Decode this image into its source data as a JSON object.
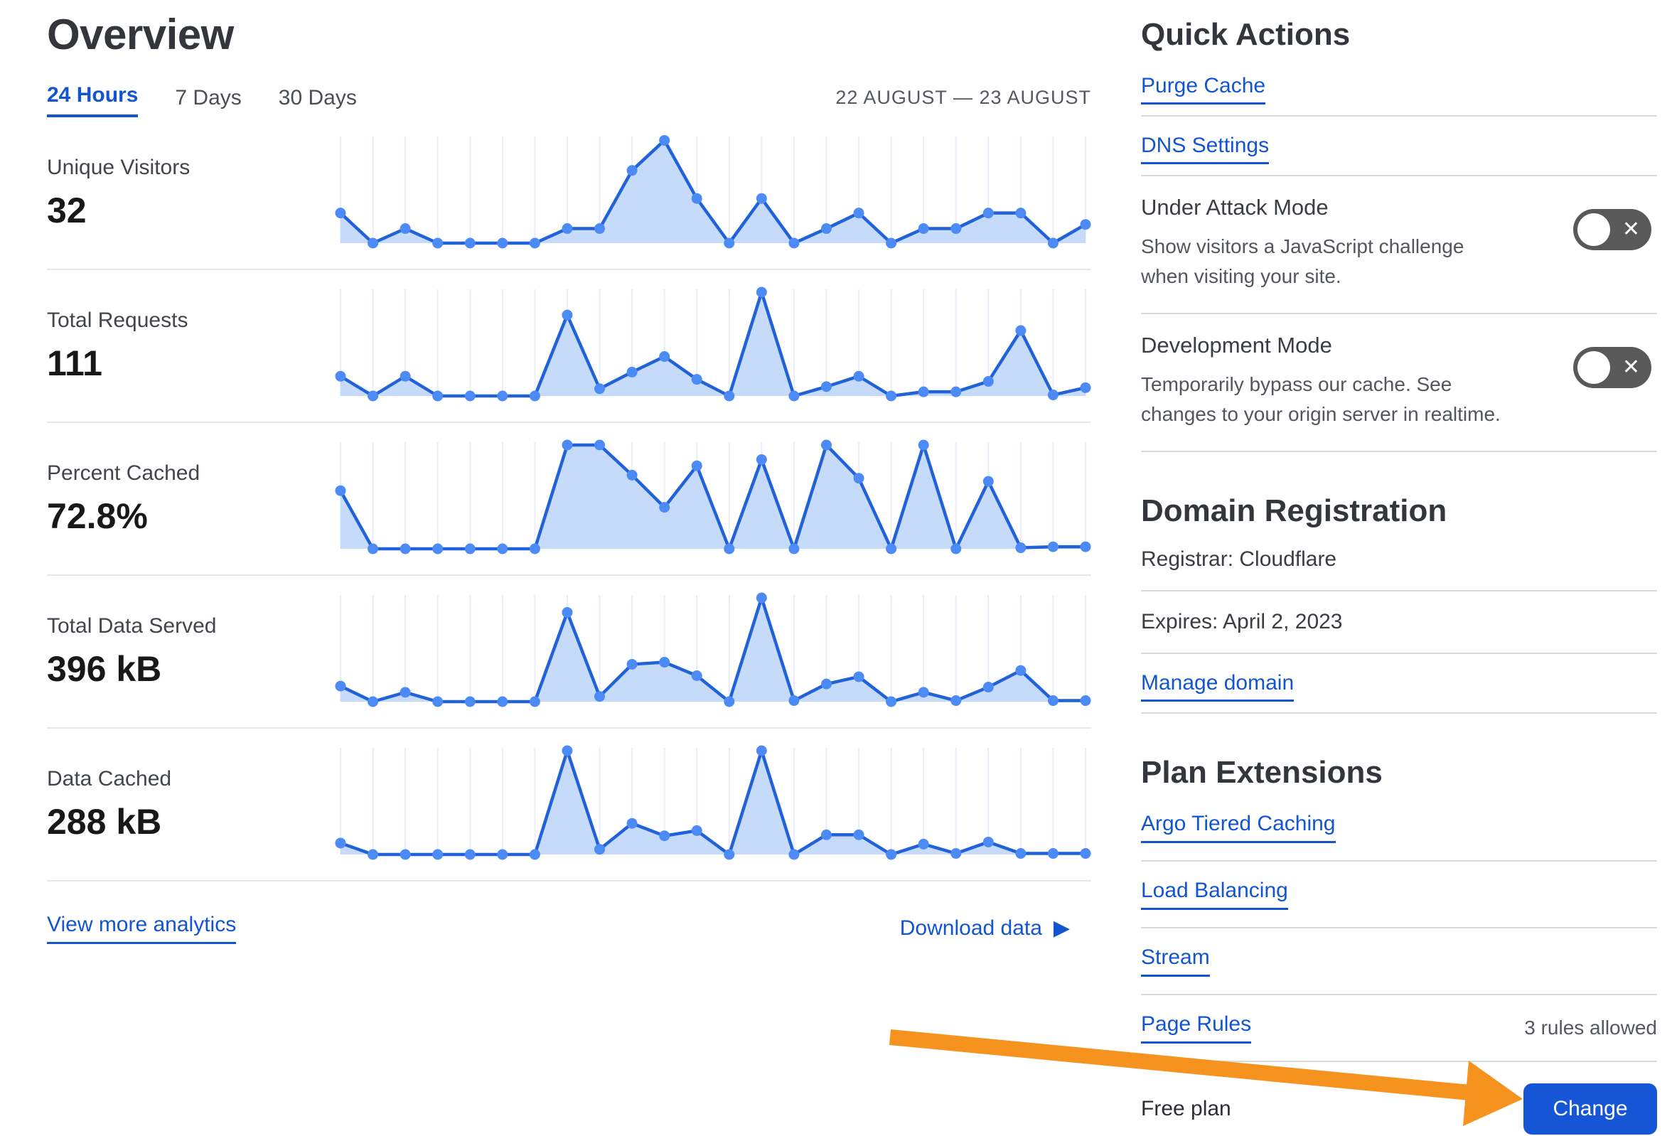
{
  "page": {
    "title": "Overview"
  },
  "tabs": [
    {
      "label": "24 Hours",
      "active": true
    },
    {
      "label": "7 Days",
      "active": false
    },
    {
      "label": "30 Days",
      "active": false
    }
  ],
  "date_range": "22 AUGUST — 23 AUGUST",
  "chart_data": [
    {
      "type": "area",
      "name": "Unique Visitors",
      "total": "32",
      "x_unit": "hour",
      "x_range": "22 AUGUST — 23 AUGUST",
      "ylim": [
        0,
        100
      ],
      "grid": "vertical-only",
      "legend": false,
      "values_relative_pct": [
        29,
        0,
        14,
        0,
        0,
        0,
        0,
        14,
        14,
        70,
        99,
        43,
        0,
        43,
        0,
        14,
        29,
        0,
        14,
        14,
        29,
        29,
        0,
        18
      ]
    },
    {
      "type": "area",
      "name": "Total Requests",
      "total": "111",
      "x_unit": "hour",
      "x_range": "22 AUGUST — 23 AUGUST",
      "ylim": [
        0,
        100
      ],
      "grid": "vertical-only",
      "legend": false,
      "values_relative_pct": [
        19,
        0,
        19,
        0,
        0,
        0,
        0,
        78,
        7,
        23,
        38,
        16,
        0,
        100,
        0,
        9,
        19,
        0,
        4,
        4,
        14,
        63,
        1,
        8
      ]
    },
    {
      "type": "area",
      "name": "Percent Cached",
      "total": "72.8%",
      "x_unit": "hour",
      "x_range": "22 AUGUST — 23 AUGUST",
      "ylim": [
        0,
        100
      ],
      "grid": "vertical-only",
      "legend": false,
      "values_relative_pct": [
        56,
        0,
        0,
        0,
        0,
        0,
        0,
        100,
        100,
        71,
        40,
        80,
        0,
        86,
        0,
        100,
        68,
        0,
        100,
        0,
        65,
        1,
        2,
        2
      ]
    },
    {
      "type": "area",
      "name": "Total Data Served",
      "total": "396 kB",
      "x_unit": "hour",
      "x_range": "22 AUGUST — 23 AUGUST",
      "ylim": [
        0,
        100
      ],
      "grid": "vertical-only",
      "legend": false,
      "values_relative_pct": [
        15,
        0,
        9,
        0,
        0,
        0,
        0,
        86,
        5,
        36,
        38,
        25,
        0,
        100,
        1,
        17,
        24,
        0,
        9,
        1,
        14,
        30,
        1,
        1
      ]
    },
    {
      "type": "area",
      "name": "Data Cached",
      "total": "288 kB",
      "x_unit": "hour",
      "x_range": "22 AUGUST — 23 AUGUST",
      "ylim": [
        0,
        100
      ],
      "grid": "vertical-only",
      "legend": false,
      "values_relative_pct": [
        11,
        0,
        0,
        0,
        0,
        0,
        0,
        100,
        5,
        30,
        18,
        23,
        0,
        100,
        0,
        19,
        19,
        0,
        10,
        1,
        12,
        1,
        1,
        1
      ]
    }
  ],
  "footer_links": {
    "view_more": "View more analytics",
    "download": "Download data",
    "download_icon": "play-right-triangle"
  },
  "quick_actions": {
    "title": "Quick Actions",
    "links": [
      {
        "label": "Purge Cache"
      },
      {
        "label": "DNS Settings"
      }
    ],
    "toggles": [
      {
        "label": "Under Attack Mode",
        "description": "Show visitors a JavaScript challenge when visiting your site.",
        "state": "off",
        "icon": "x-icon"
      },
      {
        "label": "Development Mode",
        "description": "Temporarily bypass our cache. See changes to your origin server in realtime.",
        "state": "off",
        "icon": "x-icon"
      }
    ]
  },
  "domain_registration": {
    "title": "Domain Registration",
    "registrar": "Registrar: Cloudflare",
    "expires": "Expires: April 2, 2023",
    "manage_link": "Manage domain"
  },
  "plan_extensions": {
    "title": "Plan Extensions",
    "items": [
      {
        "label": "Argo Tiered Caching",
        "note": ""
      },
      {
        "label": "Load Balancing",
        "note": ""
      },
      {
        "label": "Stream",
        "note": ""
      },
      {
        "label": "Page Rules",
        "note": "3 rules allowed"
      }
    ]
  },
  "plan": {
    "name": "Free plan",
    "change_label": "Change"
  },
  "annotation": {
    "type": "arrow",
    "color": "#f6921e",
    "points_to": "Change button"
  },
  "colors": {
    "link_blue": "#1355cf",
    "chart_line": "#2262d8",
    "chart_dot": "#4c8bf5",
    "chart_fill": "#c6dbf9",
    "chart_gridline": "#e9edf7",
    "toggle_bg": "#595959",
    "button_bg": "#1656d6",
    "arrow_orange": "#f6921e"
  }
}
